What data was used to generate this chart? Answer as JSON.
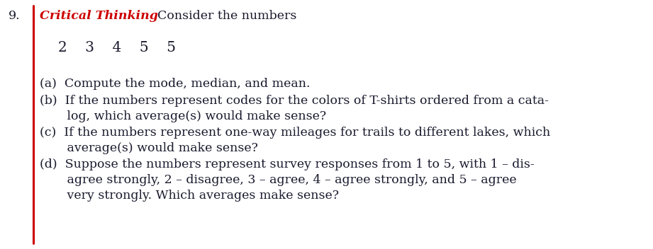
{
  "problem_number": "9.",
  "critical_thinking_label": "Critical Thinking",
  "consider_text": "Consider the numbers",
  "numbers_line": "2    3    4    5    5",
  "part_a": "(a)  Compute the mode, median, and mean.",
  "part_b_line1": "(b)  If the numbers represent codes for the colors of T-shirts ordered from a cata-",
  "part_b_line2": "       log, which average(s) would make sense?",
  "part_c_line1": "(c)  If the numbers represent one-way mileages for trails to different lakes, which",
  "part_c_line2": "       average(s) would make sense?",
  "part_d_line1": "(d)  Suppose the numbers represent survey responses from 1 to 5, with 1 – dis-",
  "part_d_line2": "       agree strongly, 2 – disagree, 3 – agree, 4 – agree strongly, and 5 – agree",
  "part_d_line3": "       very strongly. Which averages make sense?",
  "bg_color": "#ffffff",
  "text_color": "#1a1a2e",
  "ct_color": "#cc0000",
  "border_color": "#cc0000",
  "font_size": 12.5,
  "numbers_font_size": 14.5,
  "header_font_size": 12.5
}
